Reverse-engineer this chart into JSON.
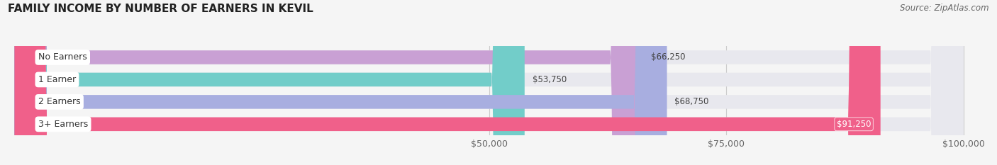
{
  "title": "FAMILY INCOME BY NUMBER OF EARNERS IN KEVIL",
  "source": "Source: ZipAtlas.com",
  "categories": [
    "No Earners",
    "1 Earner",
    "2 Earners",
    "3+ Earners"
  ],
  "values": [
    66250,
    53750,
    68750,
    91250
  ],
  "bar_colors": [
    "#c9a0d4",
    "#72cdc9",
    "#a8aee0",
    "#f0608a"
  ],
  "value_label_colors": [
    "#555555",
    "#555555",
    "#555555",
    "#ffffff"
  ],
  "x_min": 0,
  "x_max": 100000,
  "x_ticks": [
    50000,
    75000,
    100000
  ],
  "x_tick_labels": [
    "$50,000",
    "$75,000",
    "$100,000"
  ],
  "background_color": "#f5f5f5",
  "bar_bg_color": "#e8e8ee",
  "title_fontsize": 11,
  "source_fontsize": 8.5,
  "label_fontsize": 9,
  "value_fontsize": 8.5,
  "tick_fontsize": 9,
  "bar_height": 0.62,
  "bar_gap": 0.38
}
